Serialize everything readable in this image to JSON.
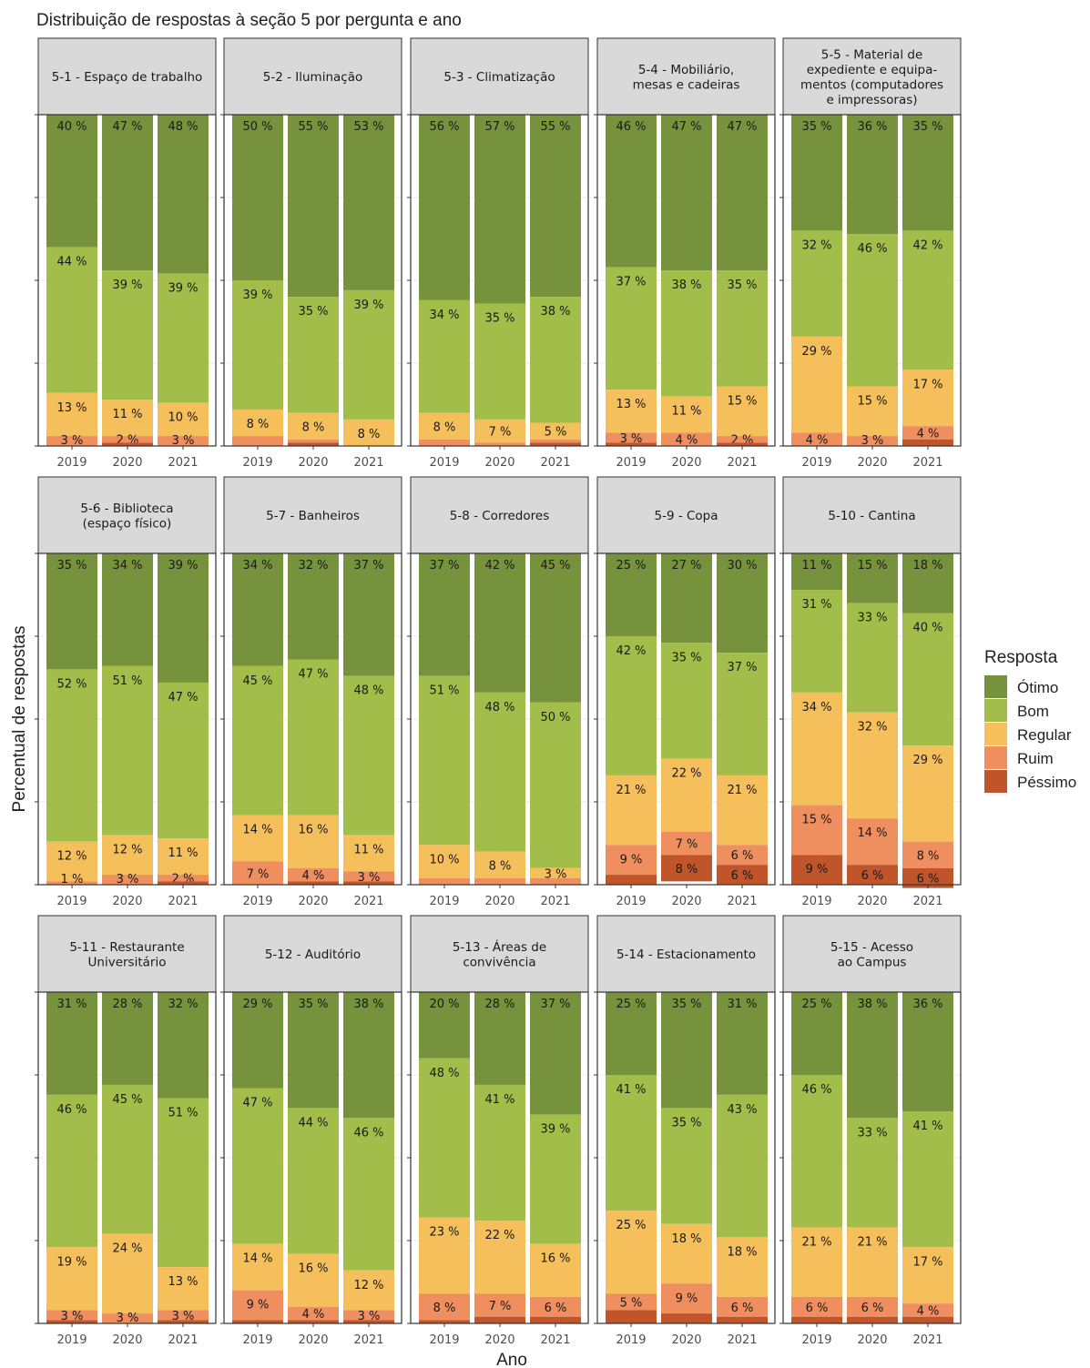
{
  "chart_data": {
    "type": "bar",
    "title": "Distribuição de respostas à seção 5 por pergunta e ano",
    "xlabel": "Ano",
    "ylabel": "Percentual de respostas",
    "ylim": [
      0,
      100
    ],
    "stacked": true,
    "grid": true,
    "legend": {
      "title": "Resposta",
      "position": "right",
      "entries": [
        {
          "name": "Ótimo",
          "color": "#76923c"
        },
        {
          "name": "Bom",
          "color": "#a2bd4a"
        },
        {
          "name": "Regular",
          "color": "#f5bf5c"
        },
        {
          "name": "Ruim",
          "color": "#ef8f5f"
        },
        {
          "name": "Péssimo",
          "color": "#c0552c"
        }
      ]
    },
    "categories": [
      "2019",
      "2020",
      "2021"
    ],
    "panels": [
      {
        "title_lines": [
          "5-1 - Espaço de trabalho"
        ],
        "years": [
          {
            "v": [
              40,
              44,
              13,
              3,
              0
            ],
            "l": [
              "40 %",
              "44 %",
              "13 %",
              "3 %",
              ""
            ]
          },
          {
            "v": [
              47,
              39,
              11,
              2,
              1
            ],
            "l": [
              "47 %",
              "39 %",
              "11 %",
              "2 %",
              ""
            ]
          },
          {
            "v": [
              48,
              39,
              10,
              3,
              0
            ],
            "l": [
              "48 %",
              "39 %",
              "10 %",
              "3 %",
              ""
            ]
          }
        ]
      },
      {
        "title_lines": [
          "5-2 - Iluminação"
        ],
        "years": [
          {
            "v": [
              50,
              39,
              8,
              3,
              0
            ],
            "l": [
              "50 %",
              "39 %",
              "8 %",
              "",
              ""
            ]
          },
          {
            "v": [
              55,
              35,
              8,
              1,
              1
            ],
            "l": [
              "55 %",
              "35 %",
              "8 %",
              "",
              ""
            ]
          },
          {
            "v": [
              53,
              39,
              8,
              0,
              0
            ],
            "l": [
              "53 %",
              "39 %",
              "8 %",
              "",
              ""
            ]
          }
        ]
      },
      {
        "title_lines": [
          "5-3 - Climatização"
        ],
        "years": [
          {
            "v": [
              56,
              34,
              8,
              2,
              0
            ],
            "l": [
              "56 %",
              "34 %",
              "8 %",
              "",
              ""
            ]
          },
          {
            "v": [
              57,
              35,
              7,
              1,
              0
            ],
            "l": [
              "57 %",
              "35 %",
              "7 %",
              "",
              ""
            ]
          },
          {
            "v": [
              55,
              38,
              5,
              1,
              1
            ],
            "l": [
              "55 %",
              "38 %",
              "5 %",
              "",
              ""
            ]
          }
        ]
      },
      {
        "title_lines": [
          "5-4 - Mobiliário,",
          "mesas e cadeiras"
        ],
        "years": [
          {
            "v": [
              46,
              37,
              13,
              3,
              1
            ],
            "l": [
              "46 %",
              "37 %",
              "13 %",
              "3 %",
              ""
            ]
          },
          {
            "v": [
              47,
              38,
              11,
              4,
              0
            ],
            "l": [
              "47 %",
              "38 %",
              "11 %",
              "4 %",
              ""
            ]
          },
          {
            "v": [
              47,
              35,
              15,
              2,
              1
            ],
            "l": [
              "47 %",
              "35 %",
              "15 %",
              "2 %",
              ""
            ]
          }
        ]
      },
      {
        "title_lines": [
          "5-5 - Material de",
          "expediente e equipa-",
          "mentos (computadores",
          "e impressoras)"
        ],
        "years": [
          {
            "v": [
              35,
              32,
              29,
              4,
              0
            ],
            "l": [
              "35 %",
              "32 %",
              "29 %",
              "4 %",
              ""
            ]
          },
          {
            "v": [
              36,
              46,
              15,
              3,
              0
            ],
            "l": [
              "36 %",
              "46 %",
              "15 %",
              "3 %",
              ""
            ]
          },
          {
            "v": [
              35,
              42,
              17,
              4,
              2
            ],
            "l": [
              "35 %",
              "42 %",
              "17 %",
              "4 %",
              ""
            ]
          }
        ]
      },
      {
        "title_lines": [
          "5-6 - Biblioteca",
          "(espaço físico)"
        ],
        "years": [
          {
            "v": [
              35,
              52,
              12,
              1,
              0
            ],
            "l": [
              "35 %",
              "52 %",
              "12 %",
              "1 %",
              ""
            ]
          },
          {
            "v": [
              34,
              51,
              12,
              3,
              0
            ],
            "l": [
              "34 %",
              "51 %",
              "12 %",
              "3 %",
              ""
            ]
          },
          {
            "v": [
              39,
              47,
              11,
              2,
              1
            ],
            "l": [
              "39 %",
              "47 %",
              "11 %",
              "2 %",
              ""
            ]
          }
        ]
      },
      {
        "title_lines": [
          "5-7 - Banheiros"
        ],
        "years": [
          {
            "v": [
              34,
              45,
              14,
              7,
              0
            ],
            "l": [
              "34 %",
              "45 %",
              "14 %",
              "7 %",
              ""
            ]
          },
          {
            "v": [
              32,
              47,
              16,
              4,
              1
            ],
            "l": [
              "32 %",
              "47 %",
              "16 %",
              "4 %",
              ""
            ]
          },
          {
            "v": [
              37,
              48,
              11,
              3,
              1
            ],
            "l": [
              "37 %",
              "48 %",
              "11 %",
              "3 %",
              ""
            ]
          }
        ]
      },
      {
        "title_lines": [
          "5-8 - Corredores"
        ],
        "years": [
          {
            "v": [
              37,
              51,
              10,
              2,
              0
            ],
            "l": [
              "37 %",
              "51 %",
              "10 %",
              "",
              ""
            ]
          },
          {
            "v": [
              42,
              48,
              8,
              2,
              0
            ],
            "l": [
              "42 %",
              "48 %",
              "8 %",
              "",
              ""
            ]
          },
          {
            "v": [
              45,
              50,
              3,
              2,
              0
            ],
            "l": [
              "45 %",
              "50 %",
              "3 %",
              "",
              ""
            ]
          }
        ]
      },
      {
        "title_lines": [
          "5-9 - Copa"
        ],
        "years": [
          {
            "v": [
              25,
              42,
              21,
              9,
              3
            ],
            "l": [
              "25 %",
              "42 %",
              "21 %",
              "9 %",
              ""
            ]
          },
          {
            "v": [
              27,
              35,
              22,
              7,
              8
            ],
            "l": [
              "27 %",
              "35 %",
              "22 %",
              "7 %",
              "8 %"
            ]
          },
          {
            "v": [
              30,
              37,
              21,
              6,
              6
            ],
            "l": [
              "30 %",
              "37 %",
              "21 %",
              "6 %",
              "6 %"
            ]
          }
        ]
      },
      {
        "title_lines": [
          "5-10 - Cantina"
        ],
        "years": [
          {
            "v": [
              11,
              31,
              34,
              15,
              9
            ],
            "l": [
              "11 %",
              "31 %",
              "34 %",
              "15 %",
              "9 %"
            ]
          },
          {
            "v": [
              15,
              33,
              32,
              14,
              6
            ],
            "l": [
              "15 %",
              "33 %",
              "32 %",
              "14 %",
              "6 %"
            ]
          },
          {
            "v": [
              18,
              40,
              29,
              8,
              6
            ],
            "l": [
              "18 %",
              "40 %",
              "29 %",
              "8 %",
              "6 %"
            ]
          }
        ]
      },
      {
        "title_lines": [
          "5-11 - Restaurante",
          "Universitário"
        ],
        "years": [
          {
            "v": [
              31,
              46,
              19,
              3,
              1
            ],
            "l": [
              "31 %",
              "46 %",
              "19 %",
              "3 %",
              ""
            ]
          },
          {
            "v": [
              28,
              45,
              24,
              3,
              0
            ],
            "l": [
              "28 %",
              "45 %",
              "24 %",
              "3 %",
              ""
            ]
          },
          {
            "v": [
              32,
              51,
              13,
              3,
              1
            ],
            "l": [
              "32 %",
              "51 %",
              "13 %",
              "3 %",
              ""
            ]
          }
        ]
      },
      {
        "title_lines": [
          "5-12 - Auditório"
        ],
        "years": [
          {
            "v": [
              29,
              47,
              14,
              9,
              1
            ],
            "l": [
              "29 %",
              "47 %",
              "14 %",
              "9 %",
              ""
            ]
          },
          {
            "v": [
              35,
              44,
              16,
              4,
              1
            ],
            "l": [
              "35 %",
              "44 %",
              "16 %",
              "4 %",
              ""
            ]
          },
          {
            "v": [
              38,
              46,
              12,
              3,
              1
            ],
            "l": [
              "38 %",
              "46 %",
              "12 %",
              "3 %",
              ""
            ]
          }
        ]
      },
      {
        "title_lines": [
          "5-13 - Áreas de",
          "convivência"
        ],
        "years": [
          {
            "v": [
              20,
              48,
              23,
              8,
              1
            ],
            "l": [
              "20 %",
              "48 %",
              "23 %",
              "8 %",
              ""
            ]
          },
          {
            "v": [
              28,
              41,
              22,
              7,
              2
            ],
            "l": [
              "28 %",
              "41 %",
              "22 %",
              "7 %",
              ""
            ]
          },
          {
            "v": [
              37,
              39,
              16,
              6,
              2
            ],
            "l": [
              "37 %",
              "39 %",
              "16 %",
              "6 %",
              ""
            ]
          }
        ]
      },
      {
        "title_lines": [
          "5-14 - Estacionamento"
        ],
        "years": [
          {
            "v": [
              25,
              41,
              25,
              5,
              4
            ],
            "l": [
              "25 %",
              "41 %",
              "25 %",
              "5 %",
              ""
            ]
          },
          {
            "v": [
              35,
              35,
              18,
              9,
              3
            ],
            "l": [
              "35 %",
              "35 %",
              "18 %",
              "9 %",
              ""
            ]
          },
          {
            "v": [
              31,
              43,
              18,
              6,
              2
            ],
            "l": [
              "31 %",
              "43 %",
              "18 %",
              "6 %",
              ""
            ]
          }
        ]
      },
      {
        "title_lines": [
          "5-15 - Acesso",
          "ao Campus"
        ],
        "years": [
          {
            "v": [
              25,
              46,
              21,
              6,
              2
            ],
            "l": [
              "25 %",
              "46 %",
              "21 %",
              "6 %",
              ""
            ]
          },
          {
            "v": [
              38,
              33,
              21,
              6,
              2
            ],
            "l": [
              "38 %",
              "33 %",
              "21 %",
              "6 %",
              ""
            ]
          },
          {
            "v": [
              36,
              41,
              17,
              4,
              2
            ],
            "l": [
              "36 %",
              "41 %",
              "17 %",
              "4 %",
              ""
            ]
          }
        ]
      }
    ]
  }
}
